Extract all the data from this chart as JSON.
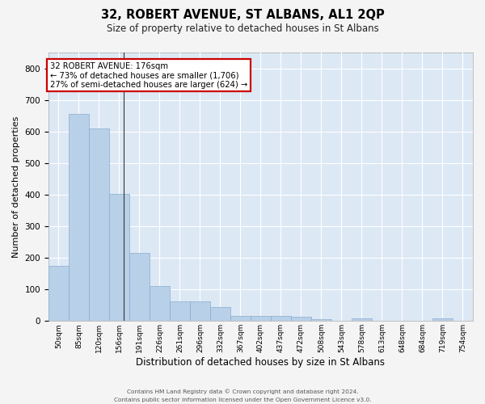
{
  "title": "32, ROBERT AVENUE, ST ALBANS, AL1 2QP",
  "subtitle": "Size of property relative to detached houses in St Albans",
  "xlabel": "Distribution of detached houses by size in St Albans",
  "ylabel": "Number of detached properties",
  "bar_values": [
    175,
    655,
    610,
    402,
    215,
    110,
    63,
    63,
    44,
    15,
    17,
    15,
    13,
    5,
    0,
    8,
    0,
    0,
    0,
    8,
    0
  ],
  "bar_labels": [
    "50sqm",
    "85sqm",
    "120sqm",
    "156sqm",
    "191sqm",
    "226sqm",
    "261sqm",
    "296sqm",
    "332sqm",
    "367sqm",
    "402sqm",
    "437sqm",
    "472sqm",
    "508sqm",
    "543sqm",
    "578sqm",
    "613sqm",
    "648sqm",
    "684sqm",
    "719sqm",
    "754sqm"
  ],
  "bar_color": "#b8d0e8",
  "bar_edge_color": "#88aece",
  "fig_bg_color": "#f4f4f4",
  "plot_bg_color": "#dde8f5",
  "grid_color": "#ffffff",
  "vline_x": 3.73,
  "vline_color": "#333333",
  "annotation_line1": "32 ROBERT AVENUE: 176sqm",
  "annotation_line2": "← 73% of detached houses are smaller (1,706)",
  "annotation_line3": "27% of semi-detached houses are larger (624) →",
  "annotation_box_fc": "#ffffff",
  "annotation_box_ec": "#cc0000",
  "ylim": [
    0,
    850
  ],
  "yticks": [
    0,
    100,
    200,
    300,
    400,
    500,
    600,
    700,
    800
  ],
  "footer_line1": "Contains HM Land Registry data © Crown copyright and database right 2024.",
  "footer_line2": "Contains public sector information licensed under the Open Government Licence v3.0."
}
